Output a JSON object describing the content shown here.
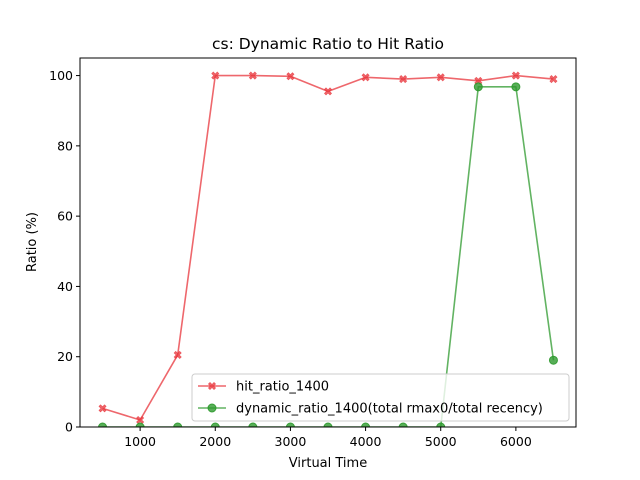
{
  "chart_data": {
    "type": "line",
    "title": "cs: Dynamic Ratio to Hit Ratio",
    "xlabel": "Virtual Time",
    "ylabel": "Ratio (%)",
    "xlim": [
      200,
      6800
    ],
    "ylim": [
      0,
      105
    ],
    "xticks": [
      1000,
      2000,
      3000,
      4000,
      5000,
      6000
    ],
    "yticks": [
      0,
      20,
      40,
      60,
      80,
      100
    ],
    "grid": false,
    "legend_position": "lower-right",
    "series": [
      {
        "name": "hit_ratio_1400",
        "color": "#e8343b",
        "marker": "x-filled",
        "x": [
          500,
          1000,
          1500,
          2000,
          2500,
          3000,
          3500,
          4000,
          4500,
          5000,
          5500,
          6000,
          6500
        ],
        "y": [
          5.3,
          2.0,
          20.5,
          100.0,
          100.0,
          99.8,
          95.5,
          99.5,
          99.0,
          99.5,
          98.5,
          100.0,
          99.0
        ]
      },
      {
        "name": "dynamic_ratio_1400(total rmax0/total recency)",
        "color": "#2e9a2e",
        "marker": "circle",
        "x": [
          500,
          1000,
          1500,
          2000,
          2500,
          3000,
          3500,
          4000,
          4500,
          5000,
          5500,
          6000,
          6500
        ],
        "y": [
          0,
          0,
          0,
          0,
          0,
          0,
          0,
          0,
          0,
          0,
          96.8,
          96.8,
          19.0
        ]
      }
    ]
  }
}
